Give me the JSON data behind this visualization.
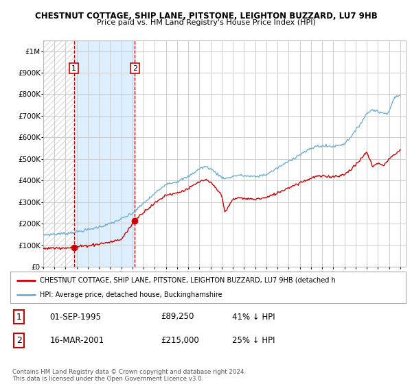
{
  "title1": "CHESTNUT COTTAGE, SHIP LANE, PITSTONE, LEIGHTON BUZZARD, LU7 9HB",
  "title2": "Price paid vs. HM Land Registry's House Price Index (HPI)",
  "yticks": [
    0,
    100000,
    200000,
    300000,
    400000,
    500000,
    600000,
    700000,
    800000,
    900000,
    1000000
  ],
  "ytick_labels": [
    "£0",
    "£100K",
    "£200K",
    "£300K",
    "£400K",
    "£500K",
    "£600K",
    "£700K",
    "£800K",
    "£900K",
    "£1M"
  ],
  "ylim": [
    0,
    1050000
  ],
  "xlim_left": 1993.0,
  "xlim_right": 2025.5,
  "purchase1_date": 1995.75,
  "purchase1_price": 89250,
  "purchase2_date": 2001.21,
  "purchase2_price": 215000,
  "hpi_color": "#6baed6",
  "price_color": "#cc0000",
  "marker_color": "#cc0000",
  "shade_color": "#ddeeff",
  "legend_label1": "CHESTNUT COTTAGE, SHIP LANE, PITSTONE, LEIGHTON BUZZARD, LU7 9HB (detached h",
  "legend_label2": "HPI: Average price, detached house, Buckinghamshire",
  "table_row1": [
    "1",
    "01-SEP-1995",
    "£89,250",
    "41% ↓ HPI"
  ],
  "table_row2": [
    "2",
    "16-MAR-2001",
    "£215,000",
    "25% ↓ HPI"
  ],
  "footer": "Contains HM Land Registry data © Crown copyright and database right 2024.\nThis data is licensed under the Open Government Licence v3.0.",
  "bg_color": "#ffffff",
  "grid_color": "#cccccc"
}
